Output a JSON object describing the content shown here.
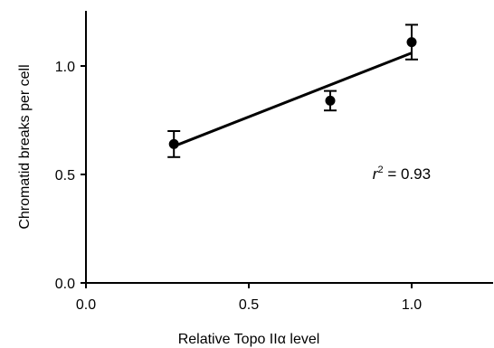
{
  "chart_data": {
    "type": "scatter",
    "title": "",
    "xlabel": "Relative Topo IIα level",
    "ylabel": "Chromatid breaks per cell",
    "xlim": [
      0.0,
      1.25
    ],
    "ylim": [
      0.0,
      1.25
    ],
    "xticks": [
      0.0,
      0.5,
      1.0
    ],
    "yticks": [
      0.0,
      0.5,
      1.0
    ],
    "xtick_labels": [
      "0.0",
      "0.5",
      "1.0"
    ],
    "ytick_labels": [
      "0.0",
      "0.5",
      "1.0"
    ],
    "grid": false,
    "legend": "none",
    "points": [
      {
        "x": 0.27,
        "y": 0.64,
        "err": 0.06
      },
      {
        "x": 0.75,
        "y": 0.84,
        "err": 0.045
      },
      {
        "x": 1.0,
        "y": 1.11,
        "err": 0.08
      }
    ],
    "fit_line": {
      "x": [
        0.27,
        1.0
      ],
      "y": [
        0.63,
        1.06
      ]
    },
    "annotation": {
      "r_symbol": "r",
      "exponent": "2",
      "rest": " = 0.93",
      "x": 0.88,
      "y": 0.53
    }
  }
}
